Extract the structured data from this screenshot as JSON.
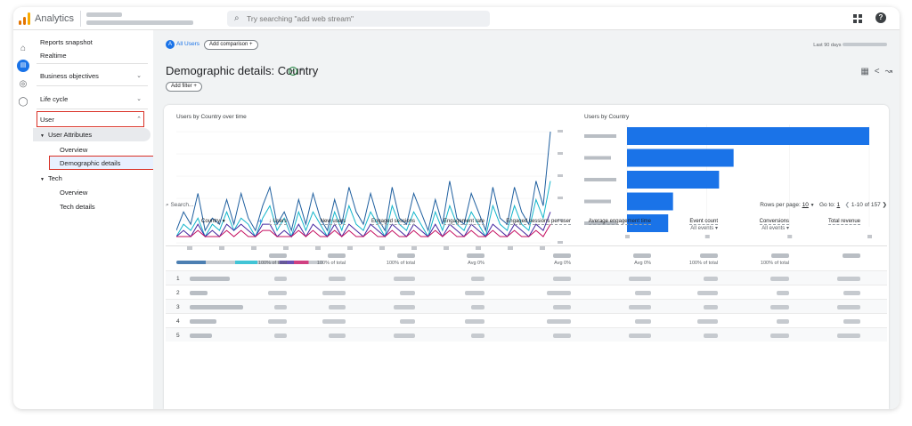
{
  "app": {
    "title": "Analytics",
    "search_placeholder": "Try searching \"add web stream\"",
    "logo_colors": [
      "#f9ab00",
      "#e37400",
      "#e37400"
    ]
  },
  "rail": {
    "icons": [
      "home-icon",
      "reports-icon",
      "explore-icon",
      "advertising-icon"
    ]
  },
  "sidebar": {
    "reports_snapshot": "Reports snapshot",
    "realtime": "Realtime",
    "business_objectives": "Business objectives",
    "life_cycle": "Life cycle",
    "user": "User",
    "user_attributes": "User Attributes",
    "overview_1": "Overview",
    "demographic_details": "Demographic details",
    "tech": "Tech",
    "overview_2": "Overview",
    "tech_details": "Tech details"
  },
  "header": {
    "all_users": "All Users",
    "add_comparison": "Add comparison",
    "date_range": "Last 90 days",
    "page_title": "Demographic details: Country",
    "add_filter": "Add filter"
  },
  "charts": {
    "line_title": "Users by Country over time",
    "bar_title": "Users by Country"
  },
  "chart_data": [
    {
      "type": "line",
      "title": "Users by Country over time",
      "series": [
        {
          "color": "#1f5f9f",
          "values": [
            2,
            5,
            3,
            8,
            2,
            4,
            3,
            7,
            3,
            8,
            4,
            2,
            6,
            9,
            3,
            5,
            2,
            7,
            3,
            8,
            4,
            2,
            7,
            3,
            9,
            5,
            3,
            8,
            4,
            2,
            9,
            4,
            3,
            8,
            5,
            2,
            7,
            3,
            10,
            4,
            3,
            8,
            5,
            2,
            9,
            4,
            3,
            9,
            5,
            3,
            10,
            6,
            18
          ]
        },
        {
          "color": "#12b5cb",
          "values": [
            1,
            3,
            2,
            4,
            1,
            3,
            2,
            5,
            2,
            4,
            3,
            1,
            4,
            6,
            2,
            4,
            1,
            5,
            2,
            5,
            3,
            1,
            5,
            2,
            6,
            3,
            2,
            5,
            3,
            1,
            6,
            3,
            2,
            5,
            3,
            1,
            5,
            2,
            6,
            3,
            2,
            5,
            3,
            1,
            6,
            3,
            2,
            6,
            3,
            2,
            7,
            4,
            10
          ]
        },
        {
          "color": "#4527a0",
          "values": [
            1,
            2,
            1,
            3,
            1,
            2,
            1,
            3,
            2,
            3,
            2,
            1,
            3,
            3,
            1,
            2,
            1,
            3,
            1,
            3,
            2,
            1,
            3,
            1,
            3,
            2,
            1,
            3,
            2,
            1,
            3,
            2,
            1,
            3,
            2,
            1,
            3,
            1,
            3,
            2,
            1,
            3,
            2,
            1,
            3,
            2,
            1,
            3,
            2,
            1,
            3,
            2,
            5
          ]
        },
        {
          "color": "#c51162",
          "values": [
            1,
            1,
            1,
            2,
            1,
            1,
            1,
            2,
            1,
            2,
            1,
            1,
            2,
            2,
            1,
            1,
            1,
            2,
            1,
            2,
            1,
            1,
            2,
            1,
            2,
            1,
            1,
            2,
            1,
            1,
            2,
            1,
            1,
            2,
            1,
            1,
            2,
            1,
            2,
            1,
            1,
            2,
            1,
            1,
            2,
            1,
            1,
            2,
            1,
            1,
            2,
            1,
            3
          ]
        }
      ]
    },
    {
      "type": "bar",
      "title": "Users by Country",
      "orientation": "horizontal",
      "values": [
        100,
        44,
        38,
        19,
        17
      ],
      "color": "#1a73e8"
    }
  ],
  "table": {
    "search_placeholder": "Search...",
    "rows_per_page_label": "Rows per page:",
    "rows_per_page": "10",
    "goto_label": "Go to:",
    "goto_value": "1",
    "range": "1-10 of 157",
    "headers": {
      "country": "Country",
      "users": "↓ Users",
      "new_users": "New users",
      "engaged_sessions": "Engaged sessions",
      "engagement_rate": "Engagement rate",
      "eng_per_user": "Engaged sessions per user",
      "avg_eng_time": "Average engagement time",
      "event_count": "Event count",
      "event_sub": "All events",
      "conversions": "Conversions",
      "conv_sub": "All events",
      "total_revenue": "Total revenue"
    },
    "totals_labels": [
      "100% of total",
      "100% of total",
      "100% of total",
      "Avg 0%",
      "Avg 0%",
      "Avg 0%",
      "100% of total",
      "100% of total"
    ],
    "row_indexes": [
      "1",
      "2",
      "3",
      "4",
      "5"
    ]
  }
}
